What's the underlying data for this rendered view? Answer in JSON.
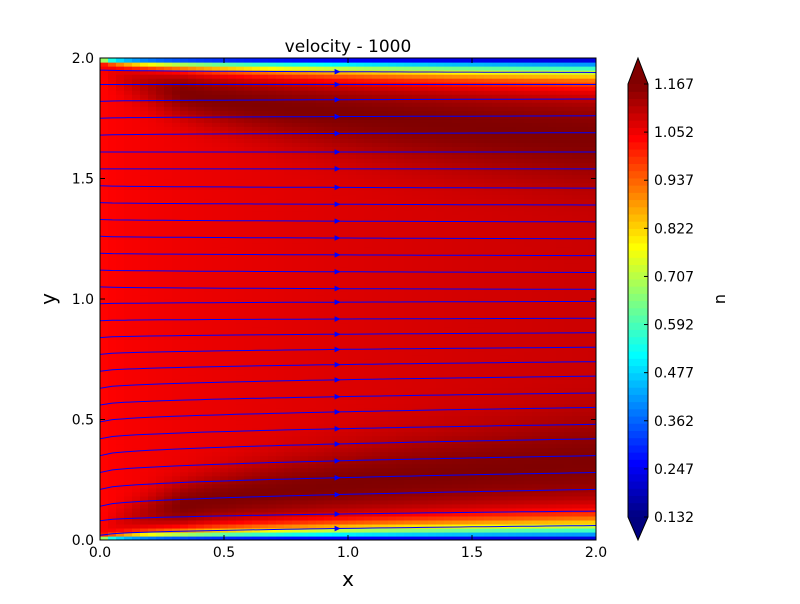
{
  "chart_data": {
    "type": "heatmap",
    "subtype": "filled-contour-with-streamlines",
    "title": "velocity - 1000",
    "xlabel": "x",
    "ylabel": "y",
    "xlim": [
      0.0,
      2.0
    ],
    "ylim": [
      0.0,
      2.0
    ],
    "x_ticks": [
      "0.0",
      "0.5",
      "1.0",
      "1.5",
      "2.0"
    ],
    "y_ticks": [
      "0.0",
      "0.5",
      "1.0",
      "1.5",
      "2.0"
    ],
    "grid": false,
    "colormap": "jet",
    "colorbar": {
      "label": "u",
      "min": 0.132,
      "max": 1.167,
      "extend": "both",
      "ticks": [
        "0.132",
        "0.247",
        "0.362",
        "0.477",
        "0.592",
        "0.707",
        "0.822",
        "0.937",
        "1.052",
        "1.167"
      ]
    },
    "field_profile": {
      "wall_value": 0.132,
      "inlet_value": 1.03,
      "peak_value": 1.167,
      "outlet_center_value": 1.09,
      "boundary_layer_at_outlet": 0.2
    },
    "streamlines": {
      "color": "#0000ff",
      "direction": "positive-x",
      "y_start": [
        0.02,
        0.08,
        0.14,
        0.21,
        0.28,
        0.35,
        0.42,
        0.49,
        0.56,
        0.63,
        0.7,
        0.77,
        0.84,
        0.91,
        0.98,
        1.05,
        1.12,
        1.19,
        1.26,
        1.33,
        1.4,
        1.47,
        1.54,
        1.61,
        1.68,
        1.75,
        1.82,
        1.89,
        1.95
      ],
      "y_end": [
        0.06,
        0.12,
        0.21,
        0.28,
        0.35,
        0.42,
        0.48,
        0.55,
        0.61,
        0.68,
        0.74,
        0.8,
        0.86,
        0.92,
        0.99,
        1.04,
        1.11,
        1.18,
        1.25,
        1.32,
        1.39,
        1.46,
        1.54,
        1.61,
        1.69,
        1.76,
        1.83,
        1.89,
        1.94
      ]
    }
  }
}
